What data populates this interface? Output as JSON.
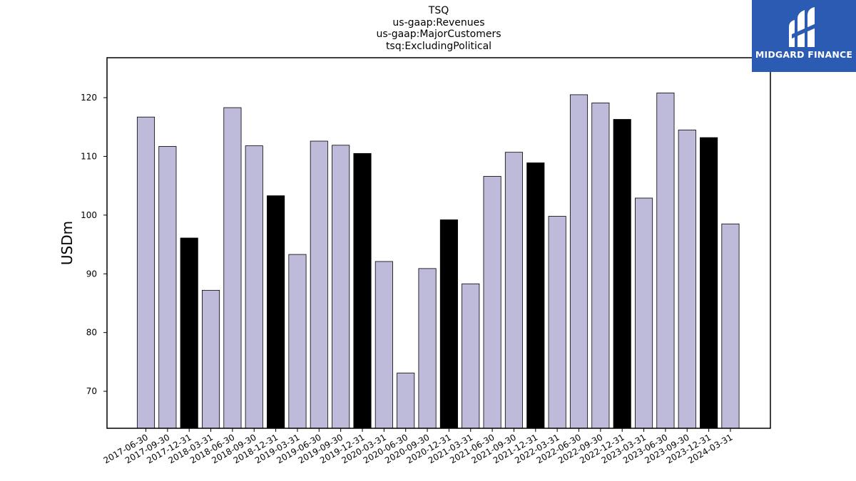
{
  "chart_data": {
    "type": "bar",
    "title_lines": [
      "TSQ",
      "us-gaap:Revenues",
      "us-gaap:MajorCustomers",
      "tsq:ExcludingPolitical"
    ],
    "xlabel": "",
    "ylabel": "USDm",
    "ylim": [
      63.7,
      126.8
    ],
    "yticks": [
      70,
      80,
      90,
      100,
      110,
      120
    ],
    "grid": false,
    "legend": "none",
    "categories": [
      "2017-06-30",
      "2017-09-30",
      "2017-12-31",
      "2018-03-31",
      "2018-06-30",
      "2018-09-30",
      "2018-12-31",
      "2019-03-31",
      "2019-06-30",
      "2019-09-30",
      "2019-12-31",
      "2020-03-31",
      "2020-06-30",
      "2020-09-30",
      "2020-12-31",
      "2021-03-31",
      "2021-06-30",
      "2021-09-30",
      "2021-12-31",
      "2022-03-31",
      "2022-06-30",
      "2022-09-30",
      "2022-12-31",
      "2023-03-31",
      "2023-06-30",
      "2023-09-30",
      "2023-12-31",
      "2024-03-31"
    ],
    "values": [
      116.7,
      111.7,
      96.1,
      87.2,
      118.3,
      111.8,
      103.3,
      93.3,
      112.6,
      111.9,
      110.5,
      92.1,
      73.1,
      90.9,
      99.2,
      88.3,
      106.6,
      110.7,
      108.9,
      99.8,
      120.5,
      119.1,
      116.3,
      102.9,
      120.8,
      114.5,
      113.2,
      98.5
    ],
    "colors": {
      "default": "#bebada",
      "year_end": "#000000",
      "edge": "#000000"
    }
  },
  "logo": {
    "text": "MIDGARD FINANCE",
    "background": "#2c5bb3"
  }
}
